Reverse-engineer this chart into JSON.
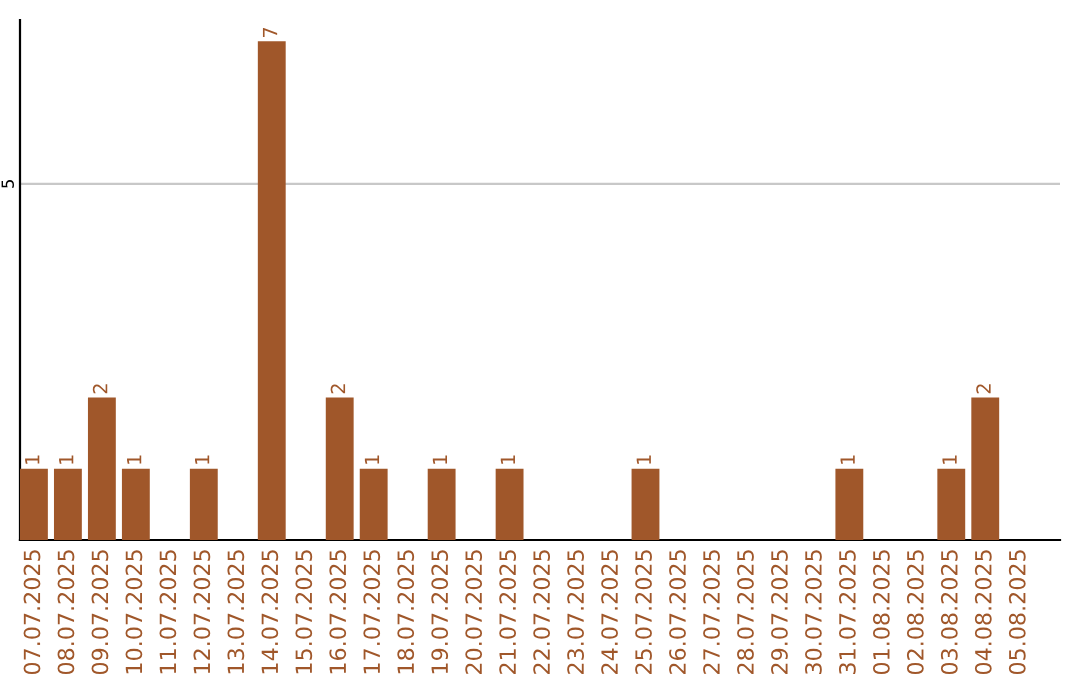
{
  "chart_data": {
    "type": "bar",
    "categories": [
      "07.07.2025",
      "08.07.2025",
      "09.07.2025",
      "10.07.2025",
      "11.07.2025",
      "12.07.2025",
      "13.07.2025",
      "14.07.2025",
      "15.07.2025",
      "16.07.2025",
      "17.07.2025",
      "18.07.2025",
      "19.07.2025",
      "20.07.2025",
      "21.07.2025",
      "22.07.2025",
      "23.07.2025",
      "24.07.2025",
      "25.07.2025",
      "26.07.2025",
      "27.07.2025",
      "28.07.2025",
      "29.07.2025",
      "30.07.2025",
      "31.07.2025",
      "01.08.2025",
      "02.08.2025",
      "03.08.2025",
      "04.08.2025",
      "05.08.2025"
    ],
    "values": [
      1,
      1,
      2,
      1,
      0,
      1,
      0,
      7,
      0,
      2,
      1,
      0,
      1,
      0,
      1,
      0,
      0,
      0,
      1,
      0,
      0,
      0,
      0,
      0,
      1,
      0,
      0,
      1,
      2,
      0
    ],
    "value_labels": [
      "1",
      "1",
      "2",
      "1",
      null,
      "1",
      null,
      "7",
      null,
      "2",
      "1",
      null,
      "1",
      null,
      "1",
      null,
      null,
      null,
      "1",
      null,
      null,
      null,
      null,
      null,
      "1",
      null,
      null,
      "1",
      "2",
      null
    ],
    "color": "#a0572a",
    "ylim": [
      0,
      7.3
    ],
    "yticks": [
      5
    ],
    "grid": "y"
  }
}
